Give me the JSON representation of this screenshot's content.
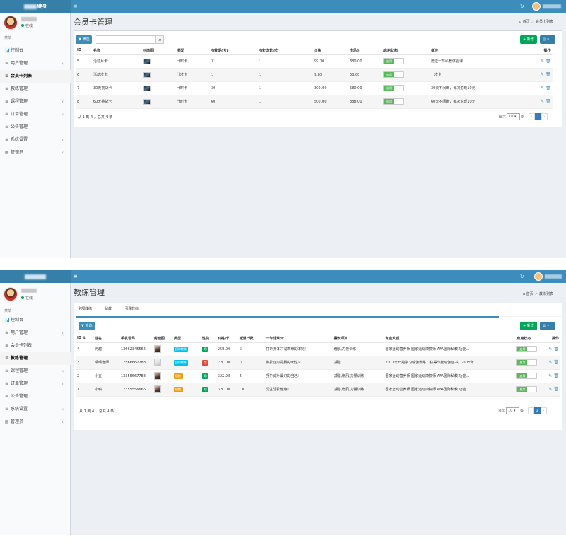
{
  "pane1": {
    "topbar": {
      "logo_suffix": "健身",
      "menu": "≡",
      "refresh": "↻"
    },
    "sidebar": {
      "status": "在线",
      "section": "菜单",
      "items": [
        {
          "icon": "📊",
          "label": "控制台",
          "arrow": ""
        },
        {
          "icon": "≡",
          "label": "用户管理",
          "arrow": "‹"
        },
        {
          "icon": "≡",
          "label": "会员卡列表",
          "arrow": ""
        },
        {
          "icon": "≡",
          "label": "教练管理",
          "arrow": ""
        },
        {
          "icon": "≡",
          "label": "课程管理",
          "arrow": "‹"
        },
        {
          "icon": "≡",
          "label": "订单管理",
          "arrow": "‹"
        },
        {
          "icon": "≡",
          "label": "公告管理",
          "arrow": ""
        },
        {
          "icon": "≡",
          "label": "系统设置",
          "arrow": "‹"
        },
        {
          "icon": "▤",
          "label": "管理员",
          "arrow": "‹"
        }
      ]
    },
    "title": "会员卡管理",
    "breadcrumb": [
      "首页",
      "会员卡列表"
    ],
    "filter_label": "筛选",
    "add_label": "新增",
    "columns": [
      "ID",
      "名称",
      "封面图",
      "类型",
      "有效期(天)",
      "有效次数(次)",
      "价格",
      "市场价",
      "启用状态",
      "备注",
      "操作"
    ],
    "rows": [
      {
        "id": "5",
        "name": "活动月卡",
        "type": "计时卡",
        "days": "31",
        "times": "1",
        "price": "99.00",
        "market": "380.00",
        "status": "启用",
        "note": "赠送一节私教体验课"
      },
      {
        "id": "6",
        "name": "活动次卡",
        "type": "计次卡",
        "days": "1",
        "times": "1",
        "price": "9.90",
        "market": "58.00",
        "status": "启用",
        "note": "一次卡"
      },
      {
        "id": "7",
        "name": "30天挑战卡",
        "type": "计时卡",
        "days": "30",
        "times": "1",
        "price": "300.00",
        "market": "580.00",
        "status": "启用",
        "note": "30天不间断，每次返现10元"
      },
      {
        "id": "8",
        "name": "60天挑战卡",
        "type": "计时卡",
        "days": "60",
        "times": "1",
        "price": "500.00",
        "market": "888.00",
        "status": "启用",
        "note": "60天不间断，每次返现10元"
      }
    ],
    "page_info": "从 1 到 4 ，总共 4 条",
    "per_page_label": "显示",
    "per_page": "10",
    "per_page_unit": "条",
    "prev": "‹",
    "page": "1",
    "next": "›"
  },
  "pane2": {
    "topbar": {
      "menu": "≡",
      "refresh": "↻"
    },
    "sidebar": {
      "status": "在线",
      "section": "菜单",
      "items": [
        {
          "icon": "📊",
          "label": "控制台",
          "arrow": ""
        },
        {
          "icon": "≡",
          "label": "用户管理",
          "arrow": "‹"
        },
        {
          "icon": "≡",
          "label": "会员卡列表",
          "arrow": ""
        },
        {
          "icon": "≡",
          "label": "教练管理",
          "arrow": ""
        },
        {
          "icon": "≡",
          "label": "课程管理",
          "arrow": "‹"
        },
        {
          "icon": "≡",
          "label": "订单管理",
          "arrow": "‹"
        },
        {
          "icon": "≡",
          "label": "公告管理",
          "arrow": ""
        },
        {
          "icon": "≡",
          "label": "系统设置",
          "arrow": "‹"
        },
        {
          "icon": "▤",
          "label": "管理员",
          "arrow": "‹"
        }
      ]
    },
    "title": "教练管理",
    "breadcrumb": [
      "首页",
      "教练列表"
    ],
    "tabs": [
      "全部教练",
      "私教",
      "团课教练"
    ],
    "filter_label": "筛选",
    "add_label": "新增",
    "columns": [
      "ID",
      "姓名",
      "手机号码",
      "封面图",
      "类型",
      "性别",
      "价格/节",
      "起售节数",
      "一句话简介",
      "擅长项目",
      "专业资质",
      "启用状态",
      "操作"
    ],
    "rows": [
      {
        "id": "4",
        "name": "阿越",
        "phone": "13662345566",
        "type": "团课教练",
        "type_color": "info",
        "gender": "男",
        "gender_color": "green",
        "price": "255.00",
        "min": "3",
        "intro": "好的身体才是革命的本钱！",
        "skill": "增肌,力量训练",
        "cert": "国家运动营养师 国家运动康复师 AFA国际私教 功能...",
        "status": "启用"
      },
      {
        "id": "3",
        "name": "晴晴老师",
        "phone": "13566667788",
        "type": "团课教练",
        "type_color": "info",
        "gender": "女",
        "gender_color": "red",
        "price": "220.00",
        "min": "3",
        "intro": "热爱运动是我的天性~",
        "skill": "减脂",
        "cert": "2013年开始学习瑜伽教练，获得印度瑜伽证书。2015年...",
        "status": "启用"
      },
      {
        "id": "2",
        "name": "小五",
        "phone": "13355667788",
        "type": "私教",
        "type_color": "warn",
        "gender": "男",
        "gender_color": "green",
        "price": "322.98",
        "min": "5",
        "intro": "努力成为最好的自己！",
        "skill": "减脂,增肌,力量训练",
        "cert": "国家运动营养师 国家运动康复师 AFA国际私教 功能...",
        "status": "启用"
      },
      {
        "id": "1",
        "name": "小鸭",
        "phone": "13355556666",
        "type": "私教",
        "type_color": "warn",
        "gender": "男",
        "gender_color": "green",
        "price": "320.00",
        "min": "10",
        "intro": "爱生活爱健身！",
        "skill": "减脂,增肌,力量训练",
        "cert": "国家运动营养师 国家运动康复师 AFA国际私教 功能...",
        "status": "启用"
      }
    ],
    "page_info": "从 1 到 4 ，总共 4 条",
    "per_page_label": "显示",
    "per_page": "10",
    "per_page_unit": "条",
    "prev": "‹",
    "page": "1",
    "next": "›"
  }
}
